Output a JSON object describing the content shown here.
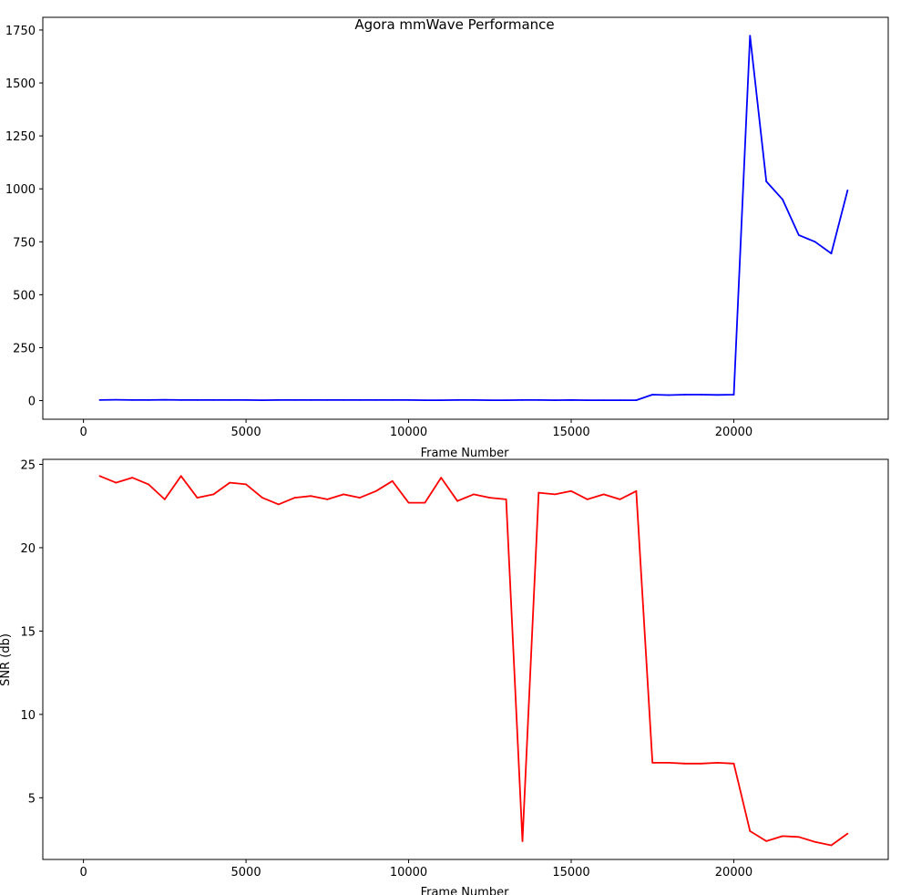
{
  "title": "Agora mmWave Performance",
  "chart_data": [
    {
      "type": "line",
      "title": "",
      "xlabel": "Frame Number",
      "ylabel": "",
      "xlim": [
        -1250,
        24750
      ],
      "ylim": [
        -88,
        1810
      ],
      "xticks": [
        0,
        5000,
        10000,
        15000,
        20000
      ],
      "yticks": [
        0,
        250,
        500,
        750,
        1000,
        1250,
        1500,
        1750
      ],
      "grid": false,
      "series": [
        {
          "color": "#0000ff",
          "x": [
            500,
            1000,
            1500,
            2000,
            2500,
            3000,
            3500,
            4000,
            4500,
            5000,
            5500,
            6000,
            6500,
            7000,
            7500,
            8000,
            8500,
            9000,
            9500,
            10000,
            10500,
            11000,
            11500,
            12000,
            12500,
            13000,
            13500,
            14000,
            14500,
            15000,
            15500,
            16000,
            16500,
            17000,
            17500,
            18000,
            18500,
            19000,
            19500,
            20000,
            20500,
            21000,
            21500,
            22000,
            22500,
            23000,
            23500
          ],
          "y": [
            3,
            4,
            3,
            3,
            4,
            3,
            3,
            3,
            3,
            3,
            2,
            3,
            3,
            3,
            3,
            3,
            3,
            3,
            3,
            3,
            2,
            2,
            3,
            3,
            2,
            2,
            3,
            3,
            2,
            3,
            2,
            2,
            2,
            2,
            28,
            26,
            28,
            28,
            27,
            28,
            1723,
            1035,
            950,
            782,
            750,
            695,
            993
          ]
        }
      ]
    },
    {
      "type": "line",
      "title": "",
      "xlabel": "Frame Number",
      "ylabel": "SNR (db)",
      "xlim": [
        -1250,
        24750
      ],
      "ylim": [
        1.3,
        25.3
      ],
      "xticks": [
        0,
        5000,
        10000,
        15000,
        20000
      ],
      "yticks": [
        5,
        10,
        15,
        20,
        25
      ],
      "grid": false,
      "series": [
        {
          "color": "#ff0000",
          "x": [
            500,
            1000,
            1500,
            2000,
            2500,
            3000,
            3500,
            4000,
            4500,
            5000,
            5500,
            6000,
            6500,
            7000,
            7500,
            8000,
            8500,
            9000,
            9500,
            10000,
            10500,
            11000,
            11500,
            12000,
            12500,
            13000,
            13500,
            14000,
            14500,
            15000,
            15500,
            16000,
            16500,
            17000,
            17500,
            18000,
            18500,
            19000,
            19500,
            20000,
            20500,
            21000,
            21500,
            22000,
            22500,
            23000,
            23500
          ],
          "y": [
            24.3,
            23.9,
            24.2,
            23.8,
            22.9,
            24.3,
            23.0,
            23.2,
            23.9,
            23.8,
            23.0,
            22.6,
            23.0,
            23.1,
            22.9,
            23.2,
            23.0,
            23.4,
            24.0,
            22.7,
            22.7,
            24.2,
            22.8,
            23.2,
            23.0,
            22.9,
            2.4,
            23.3,
            23.2,
            23.4,
            22.9,
            23.2,
            22.9,
            23.4,
            7.1,
            7.1,
            7.05,
            7.05,
            7.1,
            7.05,
            3.0,
            2.4,
            2.7,
            2.65,
            2.35,
            2.15,
            2.85
          ]
        }
      ]
    }
  ]
}
